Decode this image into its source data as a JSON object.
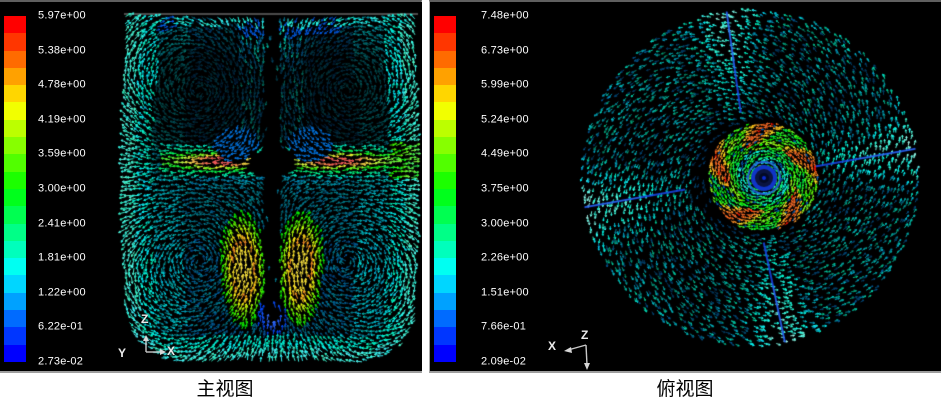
{
  "page": {
    "background_color": "#ffffff",
    "panel_background": "#000000",
    "text_color_legend": "#ffffff",
    "caption_color": "#000000"
  },
  "panels": [
    {
      "id": "front-view",
      "caption": "主视图",
      "legend": {
        "tick_labels": [
          "5.97e+00",
          "5.38e+00",
          "4.78e+00",
          "4.19e+00",
          "3.59e+00",
          "3.00e+00",
          "2.41e+00",
          "1.81e+00",
          "1.22e+00",
          "6.22e-01",
          "2.73e-02"
        ]
      },
      "triad": {
        "up": "Z",
        "right": "X",
        "out": "Y"
      }
    },
    {
      "id": "top-view",
      "caption": "俯视图",
      "legend": {
        "tick_labels": [
          "7.48e+00",
          "6.73e+00",
          "5.99e+00",
          "5.24e+00",
          "4.49e+00",
          "3.75e+00",
          "3.00e+00",
          "2.26e+00",
          "1.51e+00",
          "7.66e-01",
          "2.09e-02"
        ]
      },
      "triad": {
        "left": "X",
        "origin": "Z"
      }
    }
  ],
  "legend_band_colors": [
    "#ff0000",
    "#ff3600",
    "#ff6b00",
    "#ffa100",
    "#ffd600",
    "#f2ff00",
    "#bcff00",
    "#87ff00",
    "#51ff00",
    "#1cff00",
    "#00ff1c",
    "#00ff51",
    "#00ff87",
    "#00ffbc",
    "#00fff2",
    "#00d6ff",
    "#00a1ff",
    "#006bff",
    "#0036ff",
    "#0000ff"
  ],
  "chart_data": [
    {
      "type": "vector-field",
      "title": "主视图",
      "view": "front view of a baffled stirred tank, velocity vectors colored by magnitude",
      "colorbar": {
        "orientation": "vertical",
        "position": "left",
        "bands": 20,
        "colormap": "rainbow blue(min) to red(max)",
        "tick_labels": [
          "5.97e+00",
          "5.38e+00",
          "4.78e+00",
          "4.19e+00",
          "3.59e+00",
          "3.00e+00",
          "2.41e+00",
          "1.81e+00",
          "1.22e+00",
          "6.22e-01",
          "2.73e-02"
        ],
        "tick_values": [
          5.97,
          5.38,
          4.78,
          4.19,
          3.59,
          3.0,
          2.41,
          1.81,
          1.22,
          0.622,
          0.0273
        ],
        "min": 0.0273,
        "max": 5.97
      },
      "axes_triad": {
        "up": "Z",
        "right": "X",
        "out_of_plane": "Y"
      },
      "features": [
        "bright cyan vector bands along both side walls, top edge and curved tank bottom",
        "horizontal radial impeller jets at mid-height with red/orange high-speed cores on both sides of the shaft",
        "dark vertical shaft at tank centerline with blue glow below its tip",
        "two green/yellow plumes below the impeller",
        "dark recirculation loop cores in the upper half"
      ]
    },
    {
      "type": "vector-field",
      "title": "俯视图",
      "view": "top view of the same stirred tank, swirling velocity vectors colored by magnitude",
      "colorbar": {
        "orientation": "vertical",
        "position": "left",
        "bands": 20,
        "colormap": "rainbow blue(min) to red(max)",
        "tick_labels": [
          "7.48e+00",
          "6.73e+00",
          "5.99e+00",
          "5.24e+00",
          "4.49e+00",
          "3.75e+00",
          "3.00e+00",
          "2.26e+00",
          "1.51e+00",
          "7.66e-01",
          "2.09e-02"
        ],
        "tick_values": [
          7.48,
          6.73,
          5.99,
          5.24,
          4.49,
          3.75,
          3.0,
          2.26,
          1.51,
          0.766,
          0.0209
        ],
        "min": 0.0209,
        "max": 7.48
      },
      "axes_triad": {
        "left": "X",
        "origin": "Z",
        "down_arrow": true
      },
      "features": [
        "large circular field of dim teal tangential vectors (swirl flow)",
        "four baffles ~90 degrees apart shown as dark blue radial lines with bright cyan wedges",
        "central impeller disc: green swirl with orange/yellow lobed ring and red flecks",
        "dark navy vortex eye with blue rings at the disc center"
      ]
    }
  ]
}
